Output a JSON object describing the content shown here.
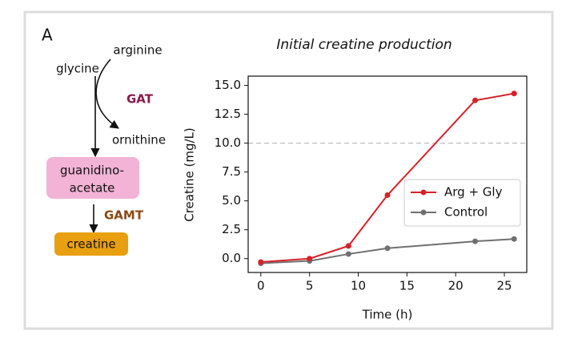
{
  "panel_label": "A",
  "diagram": {
    "substrate_1": "arginine",
    "substrate_2": "glycine",
    "enzyme_1": "GAT",
    "byproduct": "ornithine",
    "intermediate": [
      "guanidino-",
      "acetate"
    ],
    "enzyme_2": "GAMT",
    "product": "creatine"
  },
  "chart_data": {
    "type": "line",
    "title": "Initial creatine production",
    "x_label": "Time (h)",
    "y_label": "Creatine (mg/L)",
    "x": [
      0,
      5,
      9,
      13,
      22,
      26
    ],
    "series": [
      {
        "name": "Arg + Gly",
        "color": "#d62228",
        "values": [
          -0.3,
          0.0,
          1.1,
          5.5,
          13.7,
          14.3
        ]
      },
      {
        "name": "Control",
        "color": "#707070",
        "values": [
          -0.4,
          -0.2,
          0.4,
          0.9,
          1.5,
          1.7
        ]
      }
    ],
    "xlim": [
      -1.3,
      27.3
    ],
    "ylim": [
      -1.2,
      15.8
    ],
    "xticks": [
      0,
      5,
      10,
      15,
      20,
      25
    ],
    "yticks": [
      {
        "value": 0,
        "label": "0.0"
      },
      {
        "value": 2.5,
        "label": "2.5"
      },
      {
        "value": 5,
        "label": "5.0"
      },
      {
        "value": 7.5,
        "label": "7.5"
      },
      {
        "value": 10,
        "label": "10.0"
      },
      {
        "value": 12.5,
        "label": "12.5"
      },
      {
        "value": 15,
        "label": "15.0"
      }
    ],
    "reference_line": 10,
    "legend": "lower right"
  }
}
